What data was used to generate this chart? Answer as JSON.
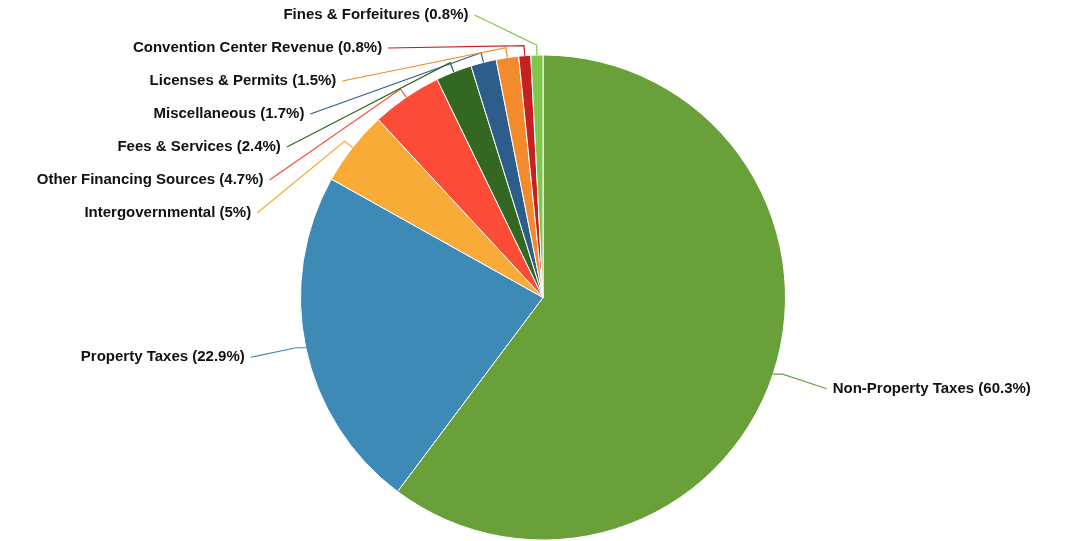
{
  "chart_data": {
    "type": "pie",
    "categories": [
      "Non-Property Taxes",
      "Property Taxes",
      "Intergovernmental",
      "Other Financing Sources",
      "Fees & Services",
      "Miscellaneous",
      "Licenses & Permits",
      "Convention Center Revenue",
      "Fines & Forfeitures"
    ],
    "values": [
      60.3,
      22.9,
      5,
      4.7,
      2.4,
      1.7,
      1.5,
      0.8,
      0.8
    ],
    "value_labels": [
      "(60.3%)",
      "(22.9%)",
      "(5%)",
      "(4.7%)",
      "(2.4%)",
      "(1.7%)",
      "(1.5%)",
      "(0.8%)",
      "(0.8%)"
    ],
    "colors": [
      "#6aa03a",
      "#3d8ab6",
      "#f8ab37",
      "#fc4c37",
      "#336823",
      "#2d5d8a",
      "#f38b2c",
      "#c52120",
      "#7fc64c"
    ],
    "legend": false
  }
}
